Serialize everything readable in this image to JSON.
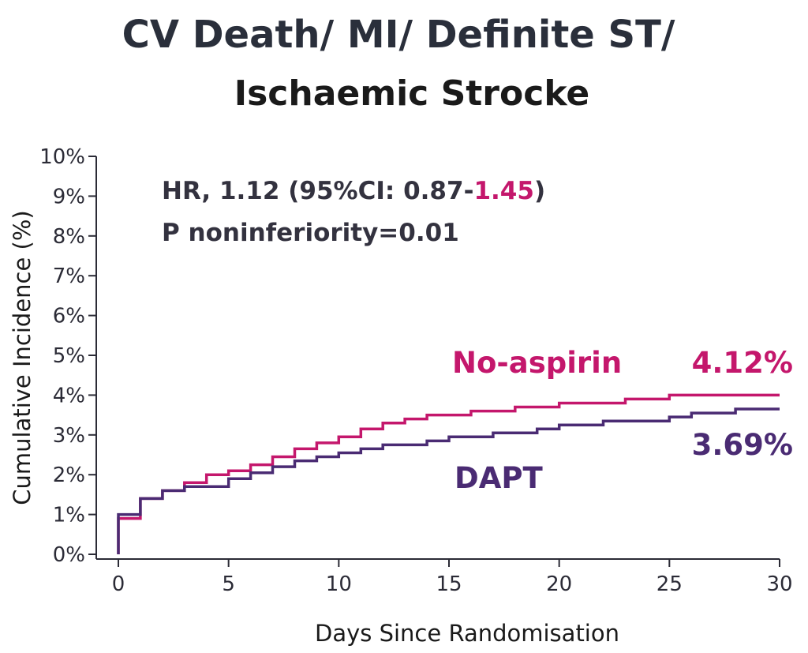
{
  "chart_data": {
    "type": "line",
    "step": true,
    "title_line1": "CV Death/ MI/ Definite ST/",
    "title_line2": "Ischaemic Strocke",
    "xlabel": "Days Since Randomisation",
    "ylabel": "Cumulative Incidence (%)",
    "xlim": [
      0,
      30
    ],
    "ylim": [
      0,
      10
    ],
    "x_ticks": [
      0,
      5,
      10,
      15,
      20,
      25,
      30
    ],
    "x_tick_labels": [
      "0",
      "5",
      "10",
      "15",
      "20",
      "25",
      "30"
    ],
    "y_ticks": [
      0,
      1,
      2,
      3,
      4,
      5,
      6,
      7,
      8,
      9,
      10
    ],
    "y_tick_labels": [
      "0%",
      "1%",
      "2%",
      "3%",
      "4%",
      "5%",
      "6%",
      "7%",
      "8%",
      "9%",
      "10%"
    ],
    "grid": false,
    "annotation": {
      "hr_prefix": "HR, 1.12 (95%CI: 0.87-",
      "hr_upper": "1.45",
      "hr_suffix": ")",
      "p_value": "P noninferiority=0.01"
    },
    "series": [
      {
        "name": "No-aspirin",
        "end_label": "4.12%",
        "color": "#c4176c",
        "points": [
          [
            0,
            0
          ],
          [
            0,
            0.9
          ],
          [
            1,
            0.9
          ],
          [
            1,
            1.4
          ],
          [
            2,
            1.4
          ],
          [
            2,
            1.6
          ],
          [
            3,
            1.6
          ],
          [
            3,
            1.8
          ],
          [
            4,
            1.8
          ],
          [
            4,
            2.0
          ],
          [
            5,
            2.0
          ],
          [
            5,
            2.1
          ],
          [
            6,
            2.1
          ],
          [
            6,
            2.25
          ],
          [
            7,
            2.25
          ],
          [
            7,
            2.45
          ],
          [
            8,
            2.45
          ],
          [
            8,
            2.65
          ],
          [
            9,
            2.65
          ],
          [
            9,
            2.8
          ],
          [
            10,
            2.8
          ],
          [
            10,
            2.95
          ],
          [
            11,
            2.95
          ],
          [
            11,
            3.15
          ],
          [
            12,
            3.15
          ],
          [
            12,
            3.3
          ],
          [
            13,
            3.3
          ],
          [
            13,
            3.4
          ],
          [
            14,
            3.4
          ],
          [
            14,
            3.5
          ],
          [
            16,
            3.5
          ],
          [
            16,
            3.6
          ],
          [
            18,
            3.6
          ],
          [
            18,
            3.7
          ],
          [
            20,
            3.7
          ],
          [
            20,
            3.8
          ],
          [
            23,
            3.8
          ],
          [
            23,
            3.9
          ],
          [
            25,
            3.9
          ],
          [
            25,
            4.0
          ],
          [
            30,
            4.0
          ]
        ]
      },
      {
        "name": "DAPT",
        "end_label": "3.69%",
        "color": "#4a2b73",
        "points": [
          [
            0,
            0
          ],
          [
            0,
            1.0
          ],
          [
            1,
            1.0
          ],
          [
            1,
            1.4
          ],
          [
            2,
            1.4
          ],
          [
            2,
            1.6
          ],
          [
            3,
            1.6
          ],
          [
            3,
            1.7
          ],
          [
            5,
            1.7
          ],
          [
            5,
            1.9
          ],
          [
            6,
            1.9
          ],
          [
            6,
            2.05
          ],
          [
            7,
            2.05
          ],
          [
            7,
            2.2
          ],
          [
            8,
            2.2
          ],
          [
            8,
            2.35
          ],
          [
            9,
            2.35
          ],
          [
            9,
            2.45
          ],
          [
            10,
            2.45
          ],
          [
            10,
            2.55
          ],
          [
            11,
            2.55
          ],
          [
            11,
            2.65
          ],
          [
            12,
            2.65
          ],
          [
            12,
            2.75
          ],
          [
            14,
            2.75
          ],
          [
            14,
            2.85
          ],
          [
            15,
            2.85
          ],
          [
            15,
            2.95
          ],
          [
            17,
            2.95
          ],
          [
            17,
            3.05
          ],
          [
            19,
            3.05
          ],
          [
            19,
            3.15
          ],
          [
            20,
            3.15
          ],
          [
            20,
            3.25
          ],
          [
            22,
            3.25
          ],
          [
            22,
            3.35
          ],
          [
            25,
            3.35
          ],
          [
            25,
            3.45
          ],
          [
            26,
            3.45
          ],
          [
            26,
            3.55
          ],
          [
            28,
            3.55
          ],
          [
            28,
            3.65
          ],
          [
            30,
            3.65
          ]
        ]
      }
    ]
  }
}
